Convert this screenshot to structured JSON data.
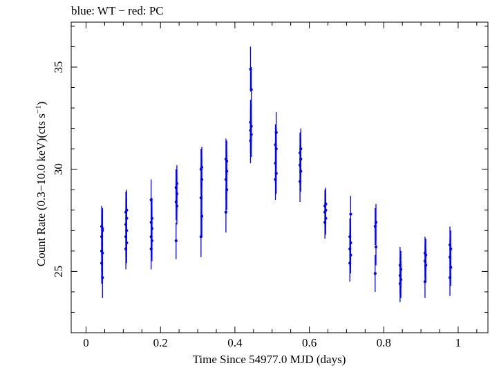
{
  "chart_data": {
    "type": "scatter",
    "title": "blue: WT − red: PC",
    "xlabel": "Time Since 54977.0 MJD (days)",
    "ylabel_main": "Count Rate (0.3−10.0 keV)(cts s",
    "ylabel_sup": "−1",
    "ylabel_end": ")",
    "xlim": [
      -0.04,
      1.08
    ],
    "ylim": [
      22.0,
      37.2
    ],
    "x_ticks": [
      0,
      0.2,
      0.4,
      0.6,
      0.8,
      1
    ],
    "x_tick_labels": [
      "0",
      "0.2",
      "0.4",
      "0.6",
      "0.8",
      "1"
    ],
    "y_ticks": [
      25,
      30,
      35
    ],
    "y_tick_labels": [
      "25",
      "30",
      "35"
    ],
    "grid": false,
    "series": [
      {
        "color": "#0000ff",
        "groups": [
          {
            "x": 0.043,
            "y": [
              26.0,
              24.7,
              25.4,
              25.9,
              26.7,
              27.0,
              27.2,
              27.1
            ],
            "err": 1.0
          },
          {
            "x": 0.108,
            "y": [
              26.1,
              26.4,
              26.7,
              27.0,
              27.3,
              27.6,
              27.9,
              28.0
            ],
            "err": 1.0
          },
          {
            "x": 0.176,
            "y": [
              26.1,
              26.5,
              26.7,
              27.1,
              27.4,
              27.6,
              28.5
            ],
            "err": 1.0
          },
          {
            "x": 0.243,
            "y": [
              26.5,
              28.2,
              28.4,
              28.8,
              29.1,
              29.3,
              29.1
            ],
            "err": 0.9
          },
          {
            "x": 0.31,
            "y": [
              26.7,
              27.7,
              28.6,
              29.5,
              30.0,
              30.1
            ],
            "err": 1.0
          },
          {
            "x": 0.377,
            "y": [
              27.9,
              29.0,
              29.5,
              29.9,
              30.5,
              30.4
            ],
            "err": 1.0
          },
          {
            "x": 0.443,
            "y": [
              31.4,
              31.7,
              31.9,
              32.1,
              32.3,
              33.9,
              34.9
            ],
            "err": 1.1
          },
          {
            "x": 0.51,
            "y": [
              29.5,
              29.8,
              30.3,
              31.0,
              31.2,
              31.8
            ],
            "err": 1.0
          },
          {
            "x": 0.576,
            "y": [
              29.4,
              29.9,
              30.2,
              30.5,
              30.8,
              31.0
            ],
            "err": 1.0
          },
          {
            "x": 0.643,
            "y": [
              27.4,
              27.6,
              27.9,
              28.0,
              28.2,
              28.3
            ],
            "err": 0.8
          },
          {
            "x": 0.71,
            "y": [
              25.4,
              25.8,
              26.1,
              26.4,
              26.7,
              27.8
            ],
            "err": 0.9
          },
          {
            "x": 0.778,
            "y": [
              24.9,
              26.2,
              27.2,
              27.4
            ],
            "err": 0.9
          },
          {
            "x": 0.845,
            "y": [
              24.4,
              24.6,
              24.8,
              25.1,
              25.3
            ],
            "err": 0.9
          },
          {
            "x": 0.912,
            "y": [
              24.5,
              25.3,
              25.5,
              25.8,
              25.9
            ],
            "err": 0.8
          },
          {
            "x": 0.979,
            "y": [
              24.7,
              25.2,
              25.7,
              26.1,
              26.3
            ],
            "err": 0.9
          }
        ]
      }
    ]
  }
}
